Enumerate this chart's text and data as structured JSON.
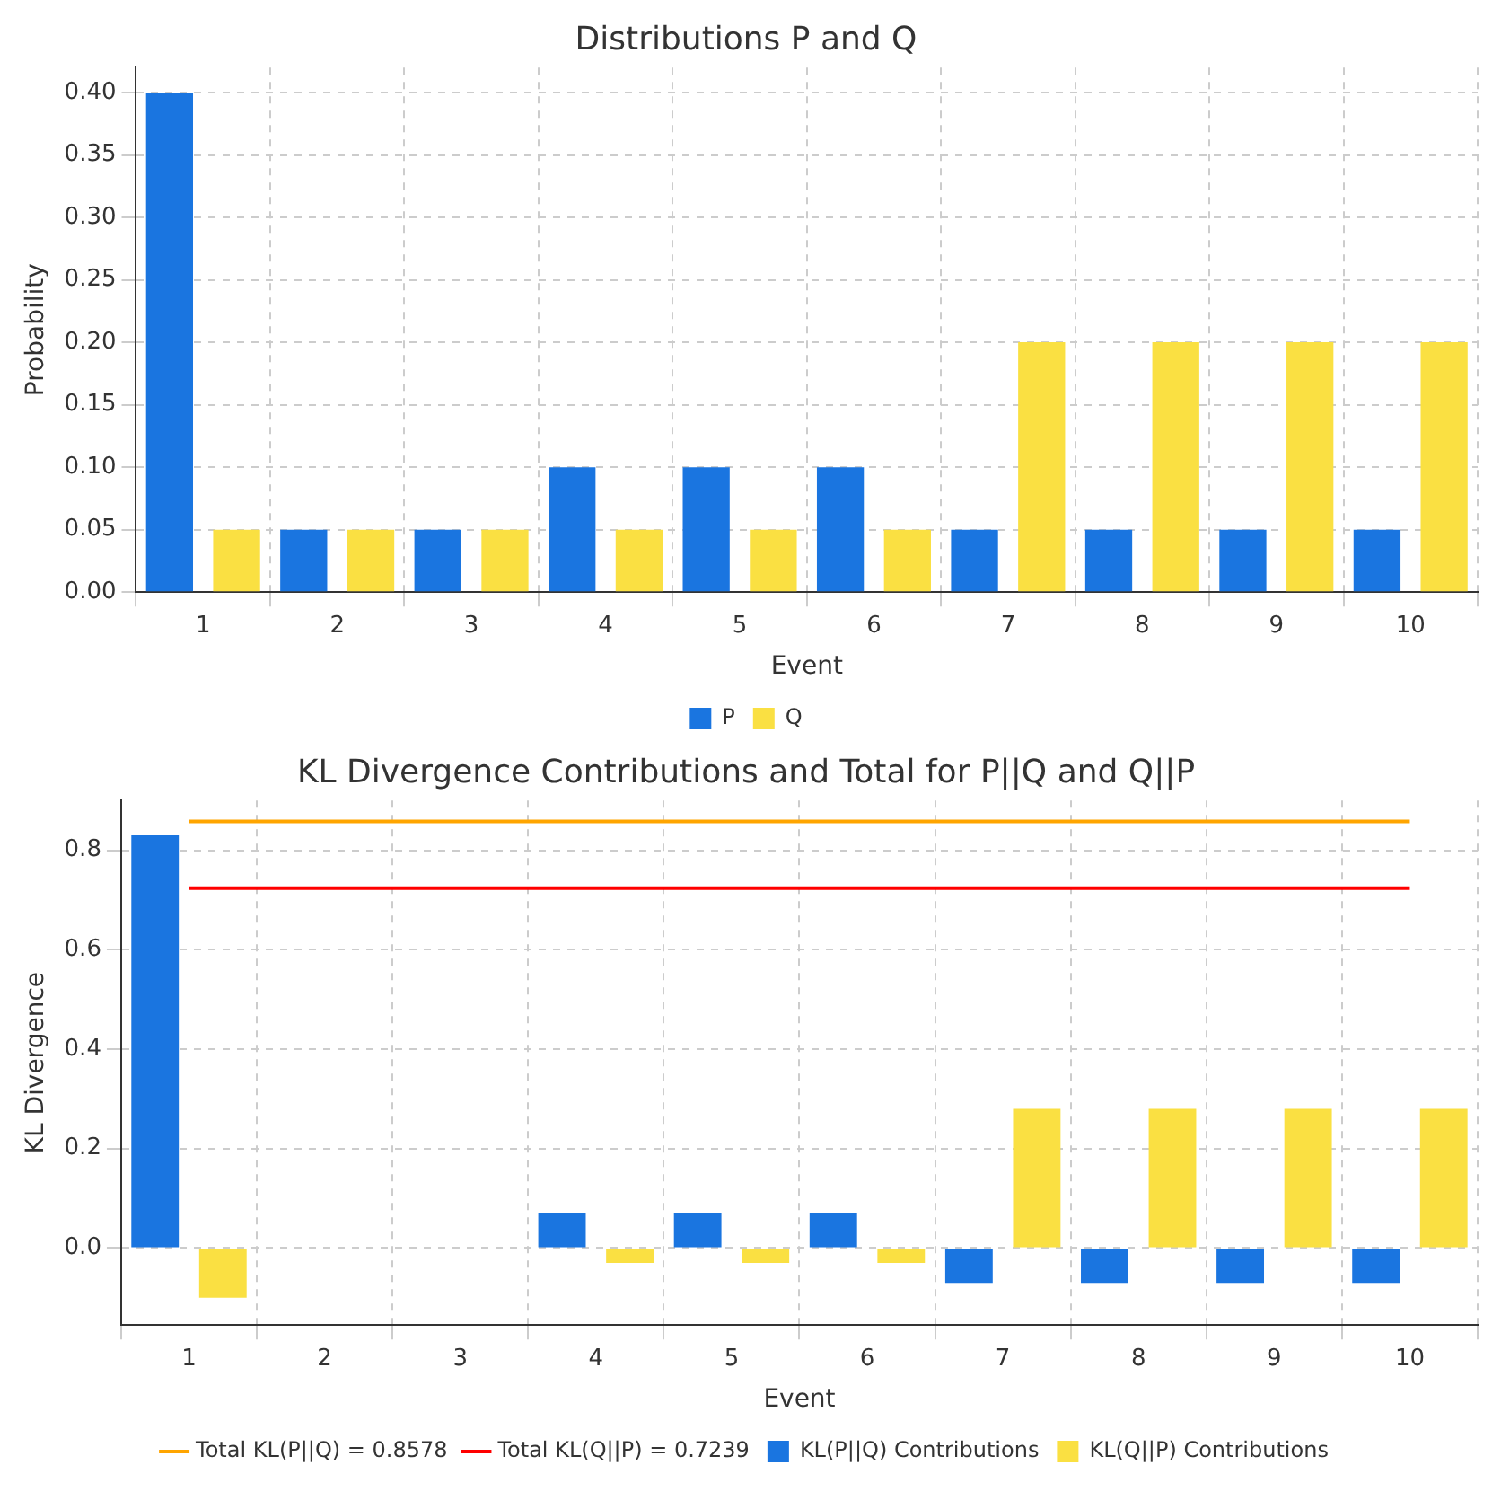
{
  "chart_data": [
    {
      "type": "bar",
      "title": "Distributions P and Q",
      "xlabel": "Event",
      "ylabel": "Probability",
      "categories": [
        "1",
        "2",
        "3",
        "4",
        "5",
        "6",
        "7",
        "8",
        "9",
        "10"
      ],
      "series": [
        {
          "name": "P",
          "color": "#1a75e0",
          "values": [
            0.4,
            0.05,
            0.05,
            0.1,
            0.1,
            0.1,
            0.05,
            0.05,
            0.05,
            0.05
          ]
        },
        {
          "name": "Q",
          "color": "#fae042",
          "values": [
            0.05,
            0.05,
            0.05,
            0.05,
            0.05,
            0.05,
            0.2,
            0.2,
            0.2,
            0.2
          ]
        }
      ],
      "ylim": [
        0,
        0.42
      ],
      "yticks": [
        {
          "value": 0,
          "label": "0.00"
        },
        0.05,
        {
          "value": 0.1,
          "label": "0.10"
        },
        0.15,
        {
          "value": 0.2,
          "label": "0.20"
        },
        0.25,
        {
          "value": 0.3,
          "label": "0.30"
        },
        0.35,
        {
          "value": 0.4,
          "label": "0.40"
        }
      ],
      "grid": true,
      "legend": "bottom"
    },
    {
      "type": "bar",
      "title": "KL Divergence Contributions and Total for P||Q and Q||P",
      "xlabel": "Event",
      "ylabel": "KL Divergence",
      "categories": [
        "1",
        "2",
        "3",
        "4",
        "5",
        "6",
        "7",
        "8",
        "9",
        "10"
      ],
      "series": [
        {
          "name": "Total KL(P||Q) = 0.8578",
          "type": "line",
          "color": "#ffa500",
          "x": [
            "1",
            "10"
          ],
          "values": [
            0.8578,
            0.8578
          ]
        },
        {
          "name": "Total KL(Q||P) = 0.7239",
          "type": "line",
          "color": "#ff0000",
          "x": [
            "1",
            "10"
          ],
          "values": [
            0.7239,
            0.7239
          ]
        },
        {
          "name": "KL(P||Q) Contributions",
          "color": "#1a75e0",
          "values": [
            0.83,
            0,
            0,
            0.07,
            0.07,
            0.07,
            -0.07,
            -0.07,
            -0.07,
            -0.07
          ]
        },
        {
          "name": "KL(Q||P) Contributions",
          "color": "#fae042",
          "values": [
            -0.1,
            0,
            0,
            -0.03,
            -0.03,
            -0.03,
            0.28,
            0.28,
            0.28,
            0.28
          ]
        }
      ],
      "ylim": [
        -0.155,
        0.9
      ],
      "yticks": [
        {
          "value": 0,
          "label": "0.0"
        },
        0.2,
        0.4,
        0.6,
        0.8
      ],
      "grid": true,
      "legend": "bottom",
      "marker": "none"
    }
  ]
}
